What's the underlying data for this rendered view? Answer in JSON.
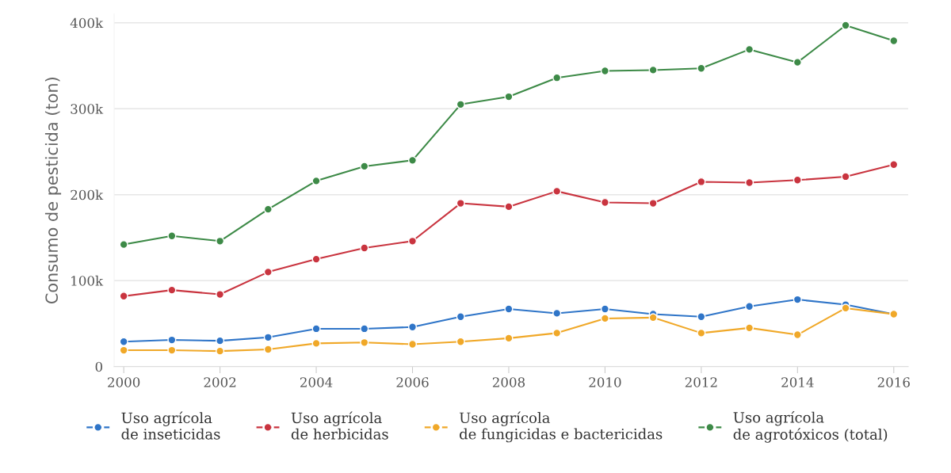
{
  "chart_data": {
    "type": "line",
    "ylabel": "Consumo de pesticida (ton)",
    "x": [
      2000,
      2001,
      2002,
      2003,
      2004,
      2005,
      2006,
      2007,
      2008,
      2009,
      2010,
      2011,
      2012,
      2013,
      2014,
      2015,
      2016
    ],
    "series": [
      {
        "name": "Uso agrícola\nde inseticidas",
        "color": "#2f75c8",
        "values": [
          29000,
          31000,
          30000,
          34000,
          44000,
          44000,
          46000,
          58000,
          67000,
          62000,
          67000,
          61000,
          58000,
          70000,
          78000,
          72000,
          61000
        ]
      },
      {
        "name": "Uso agrícola\nde herbicidas",
        "color": "#c9343f",
        "values": [
          82000,
          89000,
          84000,
          110000,
          125000,
          138000,
          146000,
          190000,
          186000,
          204000,
          191000,
          190000,
          215000,
          214000,
          217000,
          221000,
          235000
        ]
      },
      {
        "name": "Uso agrícola\nde fungicidas e bactericidas",
        "color": "#f0a828",
        "values": [
          19000,
          19000,
          18000,
          20000,
          27000,
          28000,
          26000,
          29000,
          33000,
          39000,
          56000,
          57000,
          39000,
          45000,
          37000,
          68000,
          61000
        ]
      },
      {
        "name": "Uso agrícola\nde agrotóxicos (total)",
        "color": "#3d8a47",
        "values": [
          142000,
          152000,
          146000,
          183000,
          216000,
          233000,
          240000,
          305000,
          314000,
          336000,
          344000,
          345000,
          347000,
          369000,
          354000,
          397000,
          379000
        ]
      }
    ],
    "xlim": [
      1999.8,
      2016.3
    ],
    "xticks": [
      2000,
      2002,
      2004,
      2006,
      2008,
      2010,
      2012,
      2014,
      2016
    ],
    "ylim": [
      0,
      410000
    ],
    "yticks": [
      {
        "value": 0,
        "label": "0"
      },
      {
        "value": 100000,
        "label": "100k"
      },
      {
        "value": 200000,
        "label": "200k"
      },
      {
        "value": 300000,
        "label": "300k"
      },
      {
        "value": 400000,
        "label": "400k"
      }
    ],
    "grid": "y",
    "legend": "bottom",
    "marker": "circle",
    "line_style": "solid"
  }
}
